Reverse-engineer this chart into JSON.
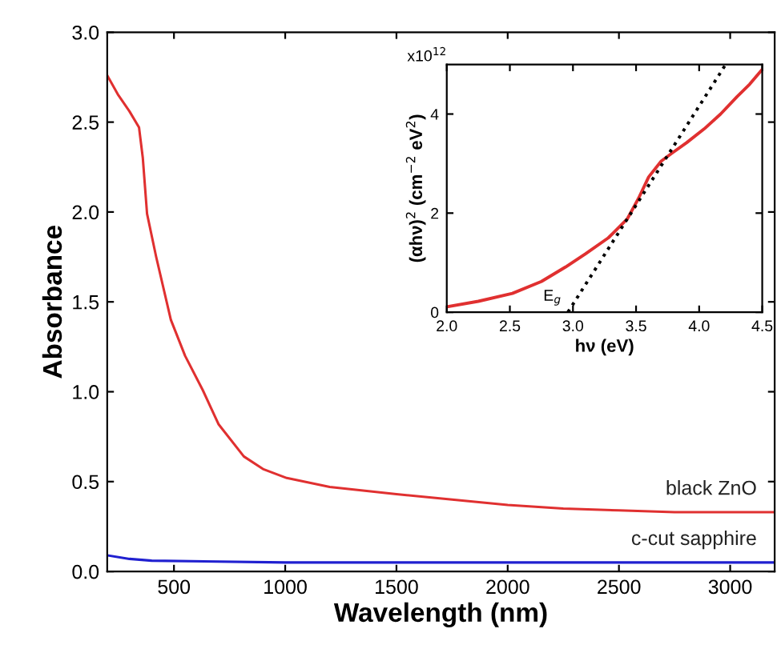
{
  "chart_data": [
    {
      "type": "line",
      "xlabel": "Wavelength (nm)",
      "ylabel": "Absorbance",
      "xlim": [
        200,
        3200
      ],
      "ylim": [
        0,
        3.0
      ],
      "xticks": [
        500,
        1000,
        1500,
        2000,
        2500,
        3000
      ],
      "yticks": [
        {
          "value": 0,
          "label": "0.0"
        },
        0.5,
        {
          "value": 1,
          "label": "1.0"
        },
        1.5,
        {
          "value": 2,
          "label": "2.0"
        },
        2.5,
        {
          "value": 3,
          "label": "3.0"
        }
      ],
      "grid": false,
      "legend": false,
      "series": [
        {
          "name": "black ZnO",
          "color": "#e03030",
          "x": [
            200,
            250,
            300,
            343,
            360,
            379,
            420,
            486,
            550,
            629,
            700,
            814,
            900,
            1007,
            1200,
            1500,
            1750,
            2000,
            2250,
            2500,
            2750,
            3000,
            3200
          ],
          "values": [
            2.76,
            2.65,
            2.56,
            2.47,
            2.3,
            1.99,
            1.75,
            1.4,
            1.2,
            1.01,
            0.82,
            0.64,
            0.57,
            0.52,
            0.47,
            0.43,
            0.4,
            0.37,
            0.35,
            0.34,
            0.33,
            0.33,
            0.33
          ]
        },
        {
          "name": "c-cut sapphire",
          "color": "#2020d0",
          "x": [
            200,
            300,
            400,
            1000,
            2000,
            3000,
            3200
          ],
          "values": [
            0.09,
            0.07,
            0.06,
            0.05,
            0.05,
            0.05,
            0.05
          ]
        }
      ]
    },
    {
      "type": "line",
      "xlabel": "hν (eV)",
      "ylabel": "(αhν)$^{2}$ (cm$^{−2}$ eV$^{2}$)",
      "xlim": [
        2.0,
        4.5
      ],
      "ylim": [
        0,
        5.0
      ],
      "xticks": [
        {
          "value": 2,
          "label": "2.0"
        },
        2.5,
        {
          "value": 3,
          "label": "3.0"
        },
        3.5,
        {
          "value": 4,
          "label": "4.0"
        },
        4.5
      ],
      "yticks": [
        0,
        2,
        4
      ],
      "grid": false,
      "legend": false,
      "annotations": [
        "x10$^{12}$",
        {
          "text": "E$_{g}$",
          "x": 2.96,
          "y": 0
        }
      ],
      "series": [
        {
          "color": "#e03030",
          "x": [
            2.0,
            2.25,
            2.52,
            2.75,
            2.94,
            3.1,
            3.28,
            3.43,
            3.52,
            3.6,
            3.7,
            3.79,
            3.9,
            4.04,
            4.17,
            4.3,
            4.4,
            4.5
          ],
          "values": [
            0.11,
            0.22,
            0.38,
            0.62,
            0.91,
            1.18,
            1.5,
            1.88,
            2.3,
            2.73,
            3.05,
            3.22,
            3.42,
            3.7,
            4.0,
            4.35,
            4.6,
            4.9
          ]
        },
        {
          "color": "#000000",
          "line_style": "dotted",
          "x": [
            2.96,
            4.21
          ],
          "values": [
            0,
            5.0
          ]
        }
      ]
    }
  ]
}
